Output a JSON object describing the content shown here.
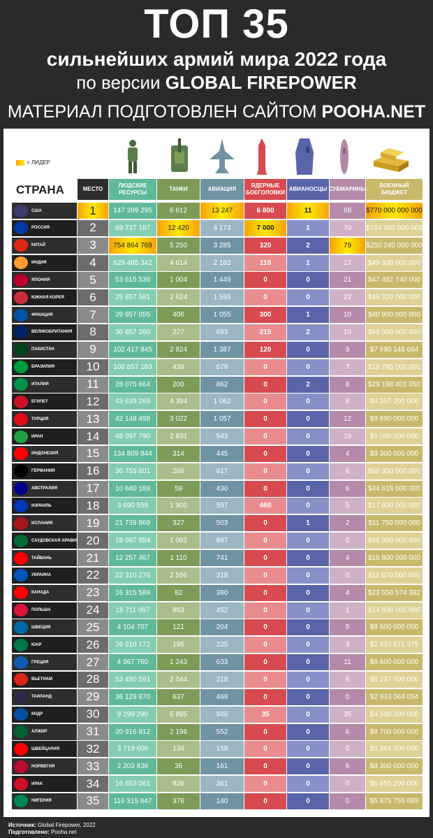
{
  "header": {
    "title": "ТОП 35",
    "subtitle": "сильнейших армий мира 2022 года",
    "line3_prefix": "по версии",
    "line3_brand": "GLOBAL FIREPOWER",
    "line4_prefix": "МАТЕРИАЛ ПОДГОТОВЛЕН САЙТОМ",
    "line4_brand": "POOHA.NET"
  },
  "legend": {
    "label": "= ЛИДЕР",
    "color": "#ffe900"
  },
  "icons": [
    "soldier-icon",
    "tank-icon",
    "fighter-jet-icon",
    "nuclear-missile-icon",
    "aircraft-carrier-icon",
    "submarine-icon",
    "gold-bars-icon"
  ],
  "columns": {
    "country": "СТРАНА",
    "rank": "МЕСТО",
    "manpower": "ЛЮДСКИЕ РЕСУРСЫ",
    "tanks": "ТАНКИ",
    "aircraft": "АВИАЦИЯ",
    "nuclear": "ЯДЕРНЫЕ БОЕГОЛОВКИ",
    "carriers": "АВИАНОСЦЫ",
    "subs": "СУБМАРИНЫ",
    "budget": "ВОЕННЫЙ БЮДЖЕТ"
  },
  "chart_data": {
    "type": "table",
    "title": "ТОП 35 сильнейших армий мира 2022 года",
    "rows": [
      {
        "country": "США",
        "rank": "1",
        "manpower": "147 399 295",
        "tanks": "6 612",
        "aircraft": "13 247",
        "nuclear": "6 800",
        "carriers": "11",
        "subs": "68",
        "budget": "$770 000 000 000",
        "leaders": [
          "rank",
          "aircraft",
          "carriers",
          "budget"
        ]
      },
      {
        "country": "РОССИЯ",
        "rank": "2",
        "manpower": "69 737 187",
        "tanks": "12 420",
        "aircraft": "4 173",
        "nuclear": "7 000",
        "carriers": "1",
        "subs": "70",
        "budget": "$154 000 000 000",
        "leaders": [
          "tanks",
          "nuclear"
        ]
      },
      {
        "country": "КИТАЙ",
        "rank": "3",
        "manpower": "754 864 769",
        "tanks": "5 250",
        "aircraft": "3 285",
        "nuclear": "320",
        "carriers": "2",
        "subs": "79",
        "budget": "$250 240 000 000",
        "leaders": [
          "manpower",
          "subs"
        ]
      },
      {
        "country": "ИНДИЯ",
        "rank": "4",
        "manpower": "629 485 342",
        "tanks": "4 614",
        "aircraft": "2 182",
        "nuclear": "110",
        "carriers": "1",
        "subs": "17",
        "budget": "$49 600 000 000",
        "leaders": []
      },
      {
        "country": "ЯПОНИЯ",
        "rank": "5",
        "manpower": "53 615 536",
        "tanks": "1 004",
        "aircraft": "1 449",
        "nuclear": "0",
        "carriers": "0",
        "subs": "21",
        "budget": "$47 482 740 000",
        "leaders": []
      },
      {
        "country": "ЮЖНАЯ КОРЕЯ",
        "rank": "6",
        "manpower": "25 857 581",
        "tanks": "2 624",
        "aircraft": "1 595",
        "nuclear": "0",
        "carriers": "0",
        "subs": "22",
        "budget": "$46 320 000 000",
        "leaders": []
      },
      {
        "country": "ФРАНЦИЯ",
        "rank": "7",
        "manpower": "29 957 055",
        "tanks": "406",
        "aircraft": "1 055",
        "nuclear": "300",
        "carriers": "1",
        "subs": "10",
        "budget": "$40 900 000 000",
        "leaders": []
      },
      {
        "country": "ВЕЛИКОБРИТАНИЯ",
        "rank": "8",
        "manpower": "30 857 260",
        "tanks": "227",
        "aircraft": "693",
        "nuclear": "215",
        "carriers": "2",
        "subs": "10",
        "budget": "$68 000 000 000",
        "leaders": []
      },
      {
        "country": "ПАКИСТАН",
        "rank": "9",
        "manpower": "102 417 845",
        "tanks": "2 824",
        "aircraft": "1 387",
        "nuclear": "120",
        "carriers": "0",
        "subs": "9",
        "budget": "$7 690 148 664",
        "leaders": []
      },
      {
        "country": "БРАЗИЛИЯ",
        "rank": "10",
        "manpower": "108 857 163",
        "tanks": "439",
        "aircraft": "679",
        "nuclear": "0",
        "carriers": "0",
        "subs": "7",
        "budget": "$18 785 000 000",
        "leaders": []
      },
      {
        "country": "ИТАЛИЯ",
        "rank": "11",
        "manpower": "28 075 664",
        "tanks": "200",
        "aircraft": "862",
        "nuclear": "0",
        "carriers": "2",
        "subs": "8",
        "budget": "$29 198 401 050",
        "leaders": []
      },
      {
        "country": "ЕГИПЕТ",
        "rank": "12",
        "manpower": "43 639 269",
        "tanks": "4 394",
        "aircraft": "1 062",
        "nuclear": "0",
        "carriers": "0",
        "subs": "8",
        "budget": "$4 357 200 000",
        "leaders": []
      },
      {
        "country": "ТУРЦИЯ",
        "rank": "13",
        "manpower": "42 148 498",
        "tanks": "3 022",
        "aircraft": "1 057",
        "nuclear": "0",
        "carriers": "0",
        "subs": "12",
        "budget": "$9 690 000 000",
        "leaders": []
      },
      {
        "country": "ИРАН",
        "rank": "14",
        "manpower": "48 097 790",
        "tanks": "2 831",
        "aircraft": "543",
        "nuclear": "0",
        "carriers": "0",
        "subs": "19",
        "budget": "$5 000 000 000",
        "leaders": []
      },
      {
        "country": "ИНДОНЕЗИЯ",
        "rank": "15",
        "manpower": "134 809 844",
        "tanks": "314",
        "aircraft": "445",
        "nuclear": "0",
        "carriers": "0",
        "subs": "4",
        "budget": "$9 300 000 000",
        "leaders": []
      },
      {
        "country": "ГЕРМАНИЯ",
        "rank": "16",
        "manpower": "36 755 601",
        "tanks": "266",
        "aircraft": "617",
        "nuclear": "0",
        "carriers": "0",
        "subs": "6",
        "budget": "$50 300 000 000",
        "leaders": []
      },
      {
        "country": "АВСТРАЛИЯ",
        "rank": "17",
        "manpower": "10 840 189",
        "tanks": "59",
        "aircraft": "430",
        "nuclear": "0",
        "carriers": "0",
        "subs": "6",
        "budget": "$44 618 000 000",
        "leaders": []
      },
      {
        "country": "ИЗРАИЛЬ",
        "rank": "18",
        "manpower": "3 690 559",
        "tanks": "1 900",
        "aircraft": "597",
        "nuclear": "460",
        "carriers": "0",
        "subs": "5",
        "budget": "$17 800 000 000",
        "leaders": []
      },
      {
        "country": "ИСПАНИЯ",
        "rank": "19",
        "manpower": "21 739 869",
        "tanks": "327",
        "aircraft": "503",
        "nuclear": "0",
        "carriers": "1",
        "subs": "2",
        "budget": "$11 750 000 000",
        "leaders": []
      },
      {
        "country": "САУДОВСКАЯ АРАВИЯ",
        "rank": "20",
        "manpower": "18 087 554",
        "tanks": "1 062",
        "aircraft": "897",
        "nuclear": "0",
        "carriers": "0",
        "subs": "0",
        "budget": "$46 000 000 000",
        "leaders": []
      },
      {
        "country": "ТАЙВАНЬ",
        "rank": "21",
        "manpower": "12 257 467",
        "tanks": "1 110",
        "aircraft": "741",
        "nuclear": "0",
        "carriers": "0",
        "subs": "4",
        "budget": "$16 800 000 000",
        "leaders": []
      },
      {
        "country": "УКРАИНА",
        "rank": "22",
        "manpower": "22 310 276",
        "tanks": "2 596",
        "aircraft": "318",
        "nuclear": "0",
        "carriers": "0",
        "subs": "0",
        "budget": "$11 870 000 000",
        "leaders": []
      },
      {
        "country": "КАНАДА",
        "rank": "23",
        "manpower": "16 315 589",
        "tanks": "82",
        "aircraft": "380",
        "nuclear": "0",
        "carriers": "0",
        "subs": "4",
        "budget": "$23 550 574 382",
        "leaders": []
      },
      {
        "country": "ПОЛЬША",
        "rank": "24",
        "manpower": "18 711 097",
        "tanks": "863",
        "aircraft": "452",
        "nuclear": "0",
        "carriers": "0",
        "subs": "1",
        "budget": "$14 500 000 000",
        "leaders": []
      },
      {
        "country": "ШВЕЦИЯ",
        "rank": "25",
        "manpower": "4 104 707",
        "tanks": "121",
        "aircraft": "204",
        "nuclear": "0",
        "carriers": "0",
        "subs": "5",
        "budget": "$8 600 000 000",
        "leaders": []
      },
      {
        "country": "ЮАР",
        "rank": "26",
        "manpower": "26 210 172",
        "tanks": "195",
        "aircraft": "225",
        "nuclear": "0",
        "carriers": "0",
        "subs": "3",
        "budget": "$2 910 671 379",
        "leaders": []
      },
      {
        "country": "ГРЕЦИЯ",
        "rank": "27",
        "manpower": "4 967 760",
        "tanks": "1 243",
        "aircraft": "633",
        "nuclear": "0",
        "carriers": "0",
        "subs": "11",
        "budget": "$6 600 000 000",
        "leaders": []
      },
      {
        "country": "ВЬЕТНАМ",
        "rank": "28",
        "manpower": "53 450 591",
        "tanks": "2 044",
        "aircraft": "218",
        "nuclear": "0",
        "carriers": "0",
        "subs": "6",
        "budget": "$6 237 600 000",
        "leaders": []
      },
      {
        "country": "ТАИЛАНД",
        "rank": "29",
        "manpower": "36 129 870",
        "tanks": "637",
        "aircraft": "469",
        "nuclear": "0",
        "carriers": "0",
        "subs": "0",
        "budget": "$2 933 064 054",
        "leaders": []
      },
      {
        "country": "КНДР",
        "rank": "30",
        "manpower": "9 299 290",
        "tanks": "5 895",
        "aircraft": "946",
        "nuclear": "35",
        "carriers": "0",
        "subs": "35",
        "budget": "$4 500 000 000",
        "leaders": []
      },
      {
        "country": "АЛЖИР",
        "rank": "31",
        "manpower": "20 916 812",
        "tanks": "2 196",
        "aircraft": "552",
        "nuclear": "0",
        "carriers": "0",
        "subs": "6",
        "budget": "$9 700 000 000",
        "leaders": []
      },
      {
        "country": "ШВЕЙЦАРИЯ",
        "rank": "32",
        "manpower": "3 719 606",
        "tanks": "134",
        "aircraft": "158",
        "nuclear": "0",
        "carriers": "0",
        "subs": "0",
        "budget": "$5 984 000 000",
        "leaders": []
      },
      {
        "country": "НОРВЕГИЯ",
        "rank": "33",
        "manpower": "2 203 836",
        "tanks": "36",
        "aircraft": "161",
        "nuclear": "0",
        "carriers": "0",
        "subs": "6",
        "budget": "$8 300 000 000",
        "leaders": []
      },
      {
        "country": "ИРАК",
        "rank": "34",
        "manpower": "16 653 061",
        "tanks": "826",
        "aircraft": "361",
        "nuclear": "0",
        "carriers": "0",
        "subs": "0",
        "budget": "$6 855 200 000",
        "leaders": []
      },
      {
        "country": "НИГЕРИЯ",
        "rank": "35",
        "manpower": "116 315 847",
        "tanks": "376",
        "aircraft": "140",
        "nuclear": "0",
        "carriers": "0",
        "subs": "0",
        "budget": "$5 875 755 689",
        "leaders": []
      }
    ]
  },
  "flags": [
    "#3c3b6e",
    "#0039a6",
    "#de2910",
    "#ff9933",
    "#bc002d",
    "#cd2e3a",
    "#0055a4",
    "#012169",
    "#01411c",
    "#009c3b",
    "#009246",
    "#ce1126",
    "#e30a17",
    "#239f40",
    "#ff0000",
    "#000000",
    "#00008b",
    "#0038b8",
    "#aa151b",
    "#006c35",
    "#fe0000",
    "#0057b7",
    "#ff0000",
    "#dc143c",
    "#006aa7",
    "#007749",
    "#0d5eaf",
    "#da251d",
    "#2d2a4a",
    "#024fa2",
    "#006233",
    "#ff0000",
    "#ba0c2f",
    "#ce1126",
    "#008751"
  ],
  "footer": {
    "source_label": "Источник:",
    "source_value": "Global Firepower, 2022",
    "prepared_label": "Подготовлено:",
    "prepared_value": "Pooha.net"
  }
}
